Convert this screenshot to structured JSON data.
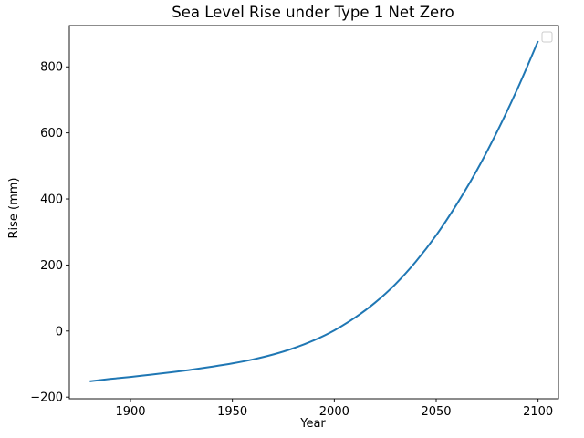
{
  "chart_data": {
    "type": "line",
    "title": "Sea Level Rise under Type 1 Net Zero",
    "xlabel": "Year",
    "ylabel": "Rise (mm)",
    "xlim": [
      1870,
      2110
    ],
    "ylim": [
      -205,
      925
    ],
    "xticks": [
      1900,
      1950,
      2000,
      2050,
      2100
    ],
    "yticks": [
      -200,
      0,
      200,
      400,
      600,
      800
    ],
    "xtick_labels": [
      "1900",
      "1950",
      "2000",
      "2050",
      "2100"
    ],
    "ytick_labels": [
      "−200",
      "0",
      "200",
      "400",
      "600",
      "800"
    ],
    "grid": false,
    "legend": {
      "placement": "top-right",
      "entries": []
    },
    "series": [
      {
        "color": "#1f77b4",
        "x": [
          1880,
          1890,
          1900,
          1910,
          1920,
          1930,
          1940,
          1950,
          1960,
          1970,
          1980,
          1990,
          2000,
          2010,
          2020,
          2030,
          2040,
          2050,
          2060,
          2070,
          2080,
          2090,
          2100
        ],
        "y": [
          -152,
          -145,
          -139,
          -132,
          -125,
          -117,
          -108,
          -98,
          -86,
          -71,
          -52,
          -28,
          2,
          40,
          86,
          142,
          210,
          290,
          383,
          487,
          605,
          735,
          878
        ]
      }
    ]
  }
}
